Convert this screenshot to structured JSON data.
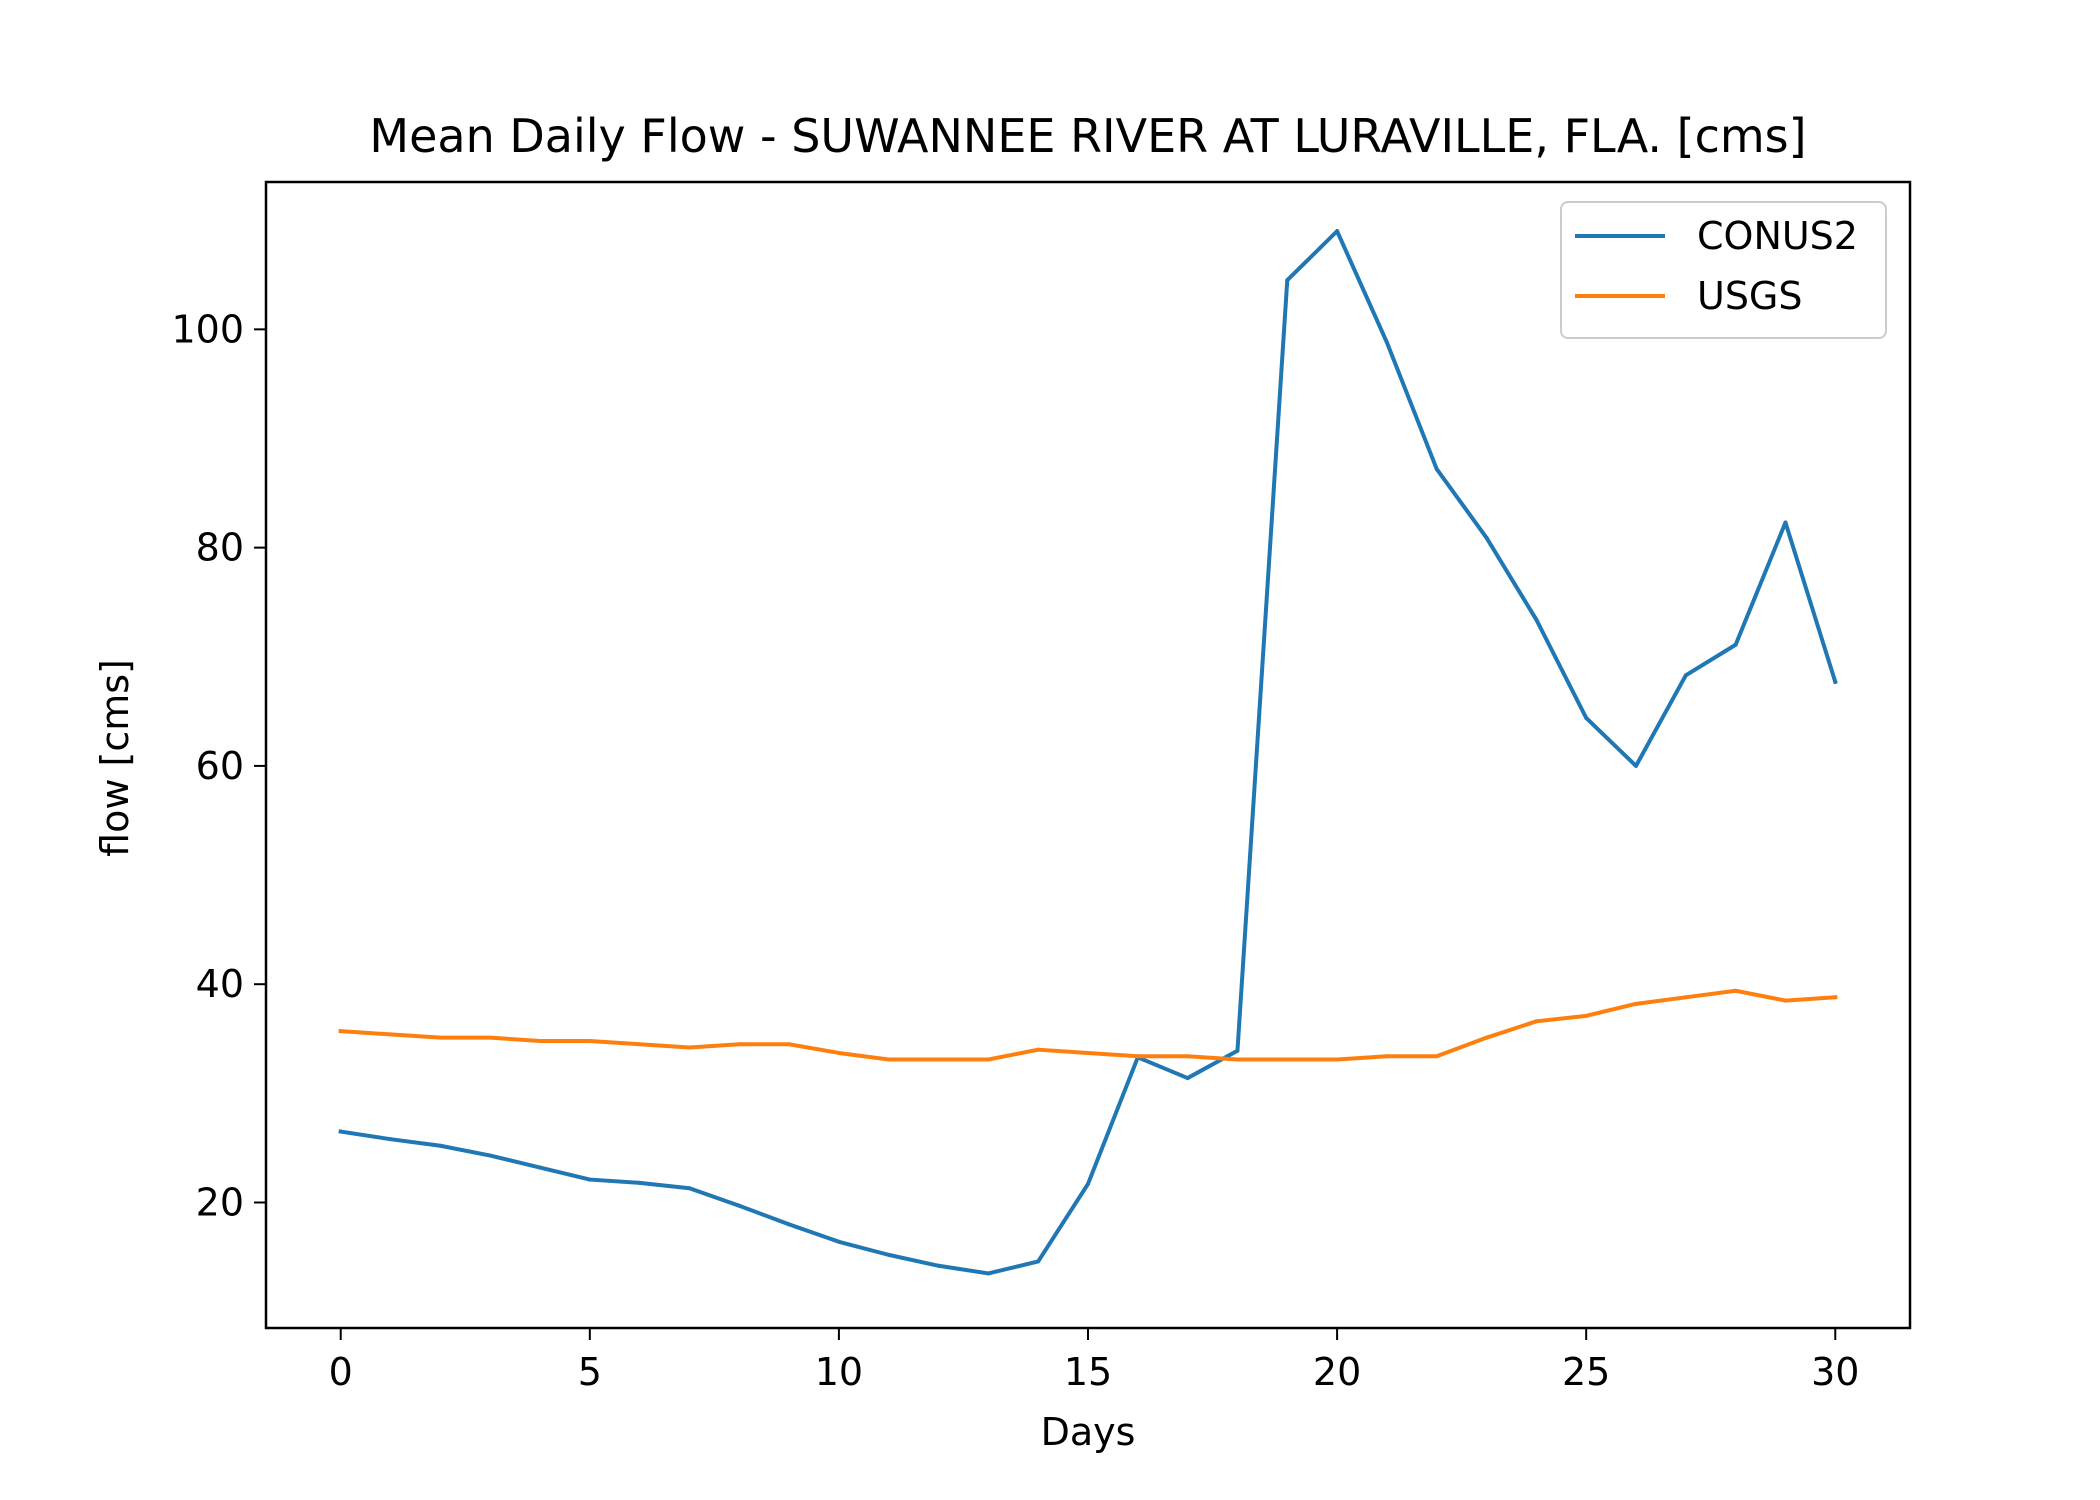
{
  "chart_data": {
    "type": "line",
    "title": "Mean Daily Flow - SUWANNEE RIVER AT LURAVILLE, FLA. [cms]",
    "xlabel": "Days",
    "ylabel": "flow [cms]",
    "xlim": [
      -1.5,
      31.5
    ],
    "ylim": [
      8.5,
      113.5
    ],
    "xticks": [
      0,
      5,
      10,
      15,
      20,
      25,
      30
    ],
    "yticks": [
      20,
      40,
      60,
      80,
      100
    ],
    "grid": false,
    "legend_position": "top-right",
    "x": [
      0,
      1,
      2,
      3,
      4,
      5,
      6,
      7,
      8,
      9,
      10,
      11,
      12,
      13,
      14,
      15,
      16,
      17,
      18,
      19,
      20,
      21,
      22,
      23,
      24,
      25,
      26,
      27,
      28,
      29,
      30
    ],
    "series": [
      {
        "name": "CONUS2",
        "color": "#1f77b4",
        "values": [
          26.5,
          25.8,
          25.2,
          24.3,
          23.2,
          22.1,
          21.8,
          21.3,
          19.7,
          18.0,
          16.4,
          15.2,
          14.2,
          13.5,
          14.6,
          21.7,
          33.3,
          31.4,
          33.9,
          104.5,
          109.0,
          98.8,
          87.2,
          80.9,
          73.4,
          64.4,
          60.0,
          68.3,
          71.1,
          82.3,
          67.7
        ]
      },
      {
        "name": "USGS",
        "color": "#ff7f0e",
        "values": [
          35.7,
          35.4,
          35.1,
          35.1,
          34.8,
          34.8,
          34.5,
          34.2,
          34.5,
          34.5,
          33.7,
          33.1,
          33.1,
          33.1,
          34.0,
          33.7,
          33.4,
          33.4,
          33.1,
          33.1,
          33.1,
          33.4,
          33.4,
          35.1,
          36.6,
          37.1,
          38.2,
          38.8,
          39.4,
          38.5,
          38.8
        ]
      }
    ]
  }
}
